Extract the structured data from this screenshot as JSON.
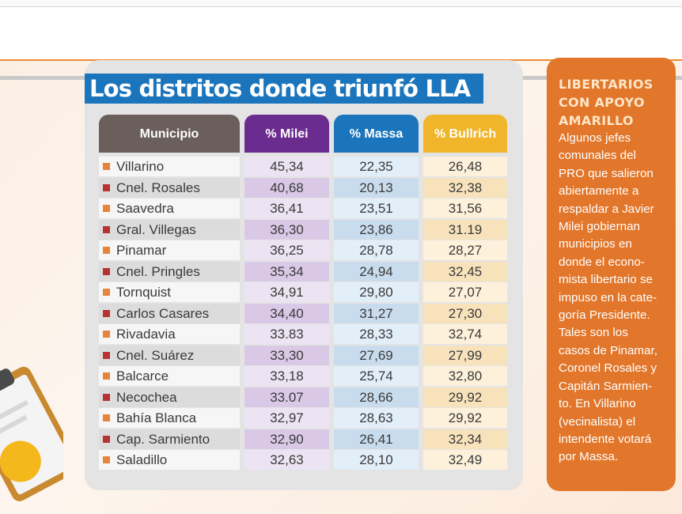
{
  "title": "Los distritos donde triunfó LLA",
  "headers": {
    "municipio": "Municipio",
    "milei": "% Milei",
    "massa": "% Massa",
    "bullrich": "% Bullrich"
  },
  "colors": {
    "milei": "#6a2c8f",
    "massa": "#1b75bc",
    "bullrich": "#f0b52a",
    "municipio": "#6b5f5c",
    "bullet_orange": "#e8843a",
    "bullet_red": "#b83232",
    "sidebox": "#e2762a"
  },
  "rows": [
    {
      "municipio": "Villarino",
      "bullet": "orange",
      "milei": "45,34",
      "massa": "22,35",
      "bullrich": "26,48"
    },
    {
      "municipio": "Cnel. Rosales",
      "bullet": "red",
      "milei": "40,68",
      "massa": "20,13",
      "bullrich": "32,38"
    },
    {
      "municipio": "Saavedra",
      "bullet": "orange",
      "milei": "36,41",
      "massa": "23,51",
      "bullrich": "31,56"
    },
    {
      "municipio": "Gral. Villegas",
      "bullet": "red",
      "milei": "36,30",
      "massa": "23,86",
      "bullrich": "31.19"
    },
    {
      "municipio": "Pinamar",
      "bullet": "orange",
      "milei": "36,25",
      "massa": "28,78",
      "bullrich": "28,27"
    },
    {
      "municipio": "Cnel. Pringles",
      "bullet": "red",
      "milei": "35,34",
      "massa": "24,94",
      "bullrich": "32,45"
    },
    {
      "municipio": "Tornquist",
      "bullet": "orange",
      "milei": "34,91",
      "massa": "29,80",
      "bullrich": "27,07"
    },
    {
      "municipio": "Carlos Casares",
      "bullet": "red",
      "milei": "34,40",
      "massa": "31,27",
      "bullrich": "27,30"
    },
    {
      "municipio": "Rivadavia",
      "bullet": "orange",
      "milei": "33.83",
      "massa": "28,33",
      "bullrich": "32,74"
    },
    {
      "municipio": "Cnel. Suárez",
      "bullet": "red",
      "milei": "33,30",
      "massa": "27,69",
      "bullrich": "27,99"
    },
    {
      "municipio": "Balcarce",
      "bullet": "orange",
      "milei": "33,18",
      "massa": "25,74",
      "bullrich": "32,80"
    },
    {
      "municipio": "Necochea",
      "bullet": "red",
      "milei": "33.07",
      "massa": "28,66",
      "bullrich": "29,92"
    },
    {
      "municipio": "Bahía Blanca",
      "bullet": "orange",
      "milei": "32,97",
      "massa": "28,63",
      "bullrich": "29,92"
    },
    {
      "municipio": "Cap. Sarmiento",
      "bullet": "red",
      "milei": "32,90",
      "massa": "26,41",
      "bullrich": "32,34"
    },
    {
      "municipio": "Saladillo",
      "bullet": "orange",
      "milei": "32,63",
      "massa": "28,10",
      "bullrich": "32,49"
    }
  ],
  "sidebar": {
    "title": "LIBERTARIOS\nCON APOYO\nAMARILLO",
    "text": "Algunos jefes\ncomunales del\nPRO que salieron\nabiertamente a\nrespaldar a Javier\nMilei gobiernan\nmunicipios en\ndonde el econo-\nmista libertario se\nimpuso en la cate-\ngoría Presidente.\nTales son los\ncasos de Pinamar,\nCoronel Rosales y\nCapitán Sarmien-\nto. En Villarino\n(vecinalista) el\nintendente votará\npor Massa."
  },
  "decoration": {
    "icon": "clipboard-icon"
  }
}
